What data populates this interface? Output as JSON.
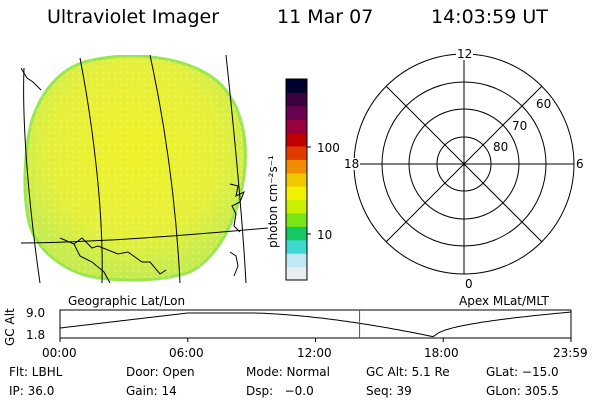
{
  "header": {
    "title": "Ultraviolet Imager",
    "date": "11 Mar 07",
    "time": "14:03:59 UT"
  },
  "colorbar": {
    "unit_label": "photon cm⁻²s⁻¹",
    "tick_labels": [
      "100",
      "10"
    ],
    "colors": [
      "#e8eef0",
      "#bfe9f2",
      "#40d8d0",
      "#14c864",
      "#78e614",
      "#c8f000",
      "#f0f000",
      "#f0c800",
      "#f08c00",
      "#e03c00",
      "#c00000",
      "#9a0040",
      "#6a0050",
      "#3a0040",
      "#000030"
    ]
  },
  "left_panel": {
    "label": "Geographic Lat/Lon",
    "fill_color": "#e8f23c",
    "rim_color": "#9ae650"
  },
  "right_panel": {
    "label": "Apex MLat/MLT",
    "mlt_labels": {
      "top": "12",
      "left": "18",
      "right": "6",
      "bottom": "0"
    },
    "lat_labels": [
      "60",
      "70",
      "80"
    ]
  },
  "altitude_plot": {
    "ylabel": "GC Alt",
    "yticks": [
      "9.0",
      "1.8"
    ],
    "xticks": [
      "00:00",
      "06:00",
      "12:00",
      "18:00",
      "23:59"
    ],
    "current_time_hours": 14.07,
    "marker_color": "#cc2222"
  },
  "info": {
    "flt": "Flt: LBHL",
    "door": "Door: Open",
    "mode": "Mode: Normal",
    "gcalt": "GC Alt: 5.1 Re",
    "glat": "GLat: −15.0",
    "ip": "IP: 36.0",
    "gain": "Gain: 14",
    "dsp": "Dsp:   −0.0",
    "seq": "Seq: 39",
    "glon": "GLon: 305.5"
  }
}
